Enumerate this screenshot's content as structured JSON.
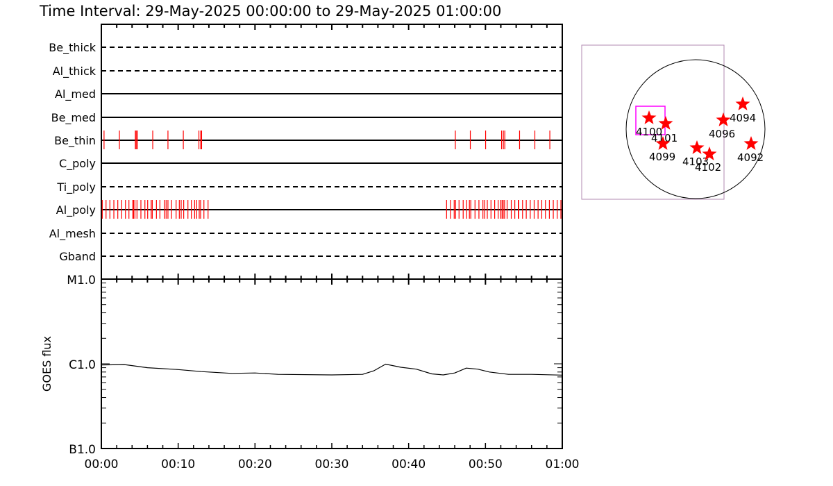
{
  "title": "Time Interval: 29-May-2025 00:00:00 to 29-May-2025 01:00:00",
  "colors": {
    "event_mark": "#ff0000",
    "axis": "#000000",
    "fov_box": "#ff00ff",
    "star": "#ff0000"
  },
  "chart_data": [
    {
      "type": "scatter",
      "description_of_marks": "event ticks per filter channel",
      "x_unit": "minutes after 00:00",
      "xlim": [
        0,
        60
      ],
      "channels": [
        {
          "name": "Be_thick",
          "line": "dashed",
          "events": []
        },
        {
          "name": "Al_thick",
          "line": "dashed",
          "events": []
        },
        {
          "name": "Al_med",
          "line": "solid",
          "events": []
        },
        {
          "name": "Be_med",
          "line": "solid",
          "events": []
        },
        {
          "name": "Be_thin",
          "line": "solid",
          "events": [
            0.35,
            2.35,
            4.42,
            4.54,
            4.69,
            6.69,
            8.67,
            10.67,
            12.7,
            12.94,
            13.05,
            46.08,
            48.03,
            50.02,
            52.1,
            52.33,
            52.52,
            54.44,
            56.43,
            58.38
          ]
        },
        {
          "name": "C_poly",
          "line": "solid",
          "events": []
        },
        {
          "name": "Ti_poly",
          "line": "dashed",
          "events": []
        },
        {
          "name": "Al_poly",
          "line": "solid",
          "events": [
            0.12,
            0.61,
            1.11,
            1.63,
            2.14,
            2.65,
            3.14,
            3.59,
            4.1,
            4.19,
            4.37,
            4.64,
            5.15,
            5.67,
            6.03,
            6.48,
            6.63,
            7.17,
            7.62,
            8.19,
            8.43,
            8.67,
            9.13,
            9.73,
            10.15,
            10.39,
            10.72,
            11.27,
            11.72,
            12.14,
            12.41,
            12.74,
            12.92,
            13.35,
            13.89,
            44.94,
            45.45,
            45.93,
            46.11,
            46.56,
            47.1,
            47.55,
            47.91,
            48.09,
            48.64,
            49.15,
            49.67,
            49.9,
            50.24,
            50.72,
            51.2,
            51.65,
            51.98,
            52.16,
            52.31,
            52.49,
            52.82,
            53.36,
            53.82,
            54.27,
            54.32,
            54.83,
            55.31,
            55.83,
            56.34,
            56.85,
            57.33,
            57.81,
            58.32,
            58.83,
            59.34,
            59.82
          ]
        },
        {
          "name": "Al_mesh",
          "line": "dashed",
          "events": []
        },
        {
          "name": "Gband",
          "line": "dashed",
          "events": []
        }
      ]
    },
    {
      "type": "line",
      "ylabel": "GOES flux",
      "yscale": "log",
      "ylim": [
        1e-07,
        1e-05
      ],
      "ytick_labels": [
        "B1.0",
        "C1.0",
        "M1.0"
      ],
      "ytick_values": [
        1e-07,
        1e-06,
        1e-05
      ],
      "xlim": [
        0,
        60
      ],
      "xtick_labels": [
        "00:00",
        "00:10",
        "00:20",
        "00:30",
        "00:40",
        "00:50",
        "01:00"
      ],
      "x": [
        0,
        3,
        6,
        10,
        13,
        17,
        20,
        23,
        30,
        34,
        35.5,
        37,
        39,
        41,
        43,
        44.5,
        46,
        47.5,
        49,
        50.5,
        53,
        56,
        60
      ],
      "y": [
        9.7e-07,
        9.8e-07,
        9e-07,
        8.55e-07,
        8.1e-07,
        7.7e-07,
        7.8e-07,
        7.5e-07,
        7.4e-07,
        7.5e-07,
        8.3e-07,
        9.9e-07,
        9.1e-07,
        8.65e-07,
        7.6e-07,
        7.4e-07,
        7.8e-07,
        8.9e-07,
        8.65e-07,
        8e-07,
        7.5e-07,
        7.5e-07,
        7.35e-07
      ]
    }
  ],
  "sun_map": {
    "regions": [
      {
        "label": "4100"
      },
      {
        "label": "4101"
      },
      {
        "label": "4099"
      },
      {
        "label": "4103"
      },
      {
        "label": "4102"
      },
      {
        "label": "4096"
      },
      {
        "label": "4094"
      },
      {
        "label": "4092"
      }
    ]
  }
}
